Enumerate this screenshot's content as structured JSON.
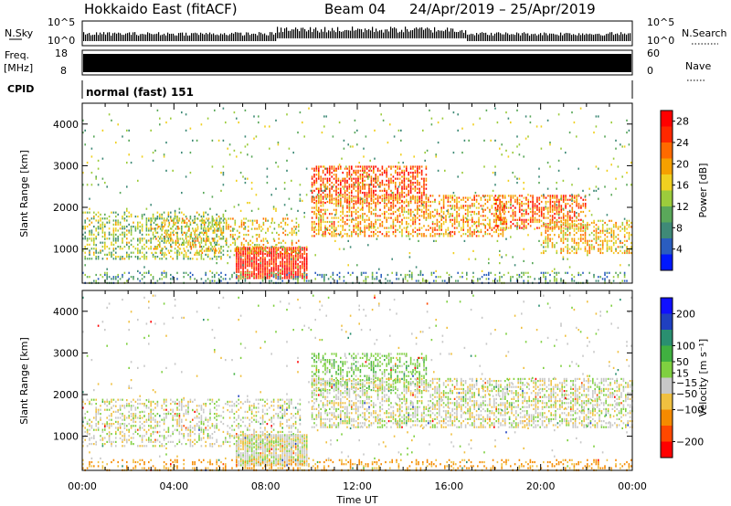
{
  "header": {
    "station": "Hokkaido East (fitACF)",
    "beam": "Beam 04",
    "dates": "24/Apr/2019 – 25/Apr/2019"
  },
  "strips": {
    "nsky_label": "N.Sky",
    "nsearch_label": "N.Search",
    "noise_top": "10^5",
    "noise_bottom": "10^0",
    "freq_label_1": "Freq.",
    "freq_label_2": "[MHz]",
    "freq_top": "18",
    "freq_bottom": "8",
    "nave_label": "Nave",
    "nave_top": "60",
    "nave_bottom": "0",
    "cpid_label": "CPID",
    "cpid_value": "normal (fast) 151"
  },
  "colors": {
    "frame": "#000000",
    "power_scale": [
      "#0018ff",
      "#2a5dbf",
      "#3f8a77",
      "#5aa85a",
      "#9ccc3c",
      "#f0d020",
      "#f5a000",
      "#ff6a00",
      "#ff2800",
      "#ff0000"
    ],
    "velocity_scale": [
      "#ff0000",
      "#ff4800",
      "#f58a00",
      "#f0c040",
      "#c8c8c8",
      "#7fd040",
      "#40b040",
      "#2a8f70",
      "#2040c0",
      "#1010ff"
    ]
  },
  "chart_data": [
    {
      "type": "heatmap",
      "name": "power-panel",
      "ylabel": "Slant Range [km]",
      "xlabel": "",
      "x_ticks": [
        "00:00",
        "04:00",
        "08:00",
        "12:00",
        "16:00",
        "20:00",
        "00:00"
      ],
      "y_ticks": [
        1000,
        2000,
        3000,
        4000
      ],
      "xlim": [
        0,
        24
      ],
      "ylim": [
        180,
        4500
      ],
      "colorbar": {
        "label": "Power [dB]",
        "ticks": [
          4,
          8,
          12,
          16,
          20,
          24,
          28
        ],
        "range": [
          0,
          30
        ]
      },
      "regions": [
        {
          "t": [
            6.7,
            9.8
          ],
          "r": [
            300,
            1050
          ],
          "v": 27,
          "d": 0.9
        },
        {
          "t": [
            0.0,
            6.2
          ],
          "r": [
            750,
            1900
          ],
          "v": 13,
          "d": 0.4
        },
        {
          "t": [
            3.0,
            9.5
          ],
          "r": [
            900,
            1750
          ],
          "v": 17,
          "d": 0.3
        },
        {
          "t": [
            10.0,
            15.0
          ],
          "r": [
            2100,
            3000
          ],
          "v": 24,
          "d": 0.6
        },
        {
          "t": [
            10.0,
            18.5
          ],
          "r": [
            1300,
            2300
          ],
          "v": 20,
          "d": 0.5
        },
        {
          "t": [
            18.0,
            22.0
          ],
          "r": [
            1500,
            2300
          ],
          "v": 23,
          "d": 0.55
        },
        {
          "t": [
            20.0,
            24.0
          ],
          "r": [
            900,
            1700
          ],
          "v": 18,
          "d": 0.45
        },
        {
          "t": [
            0.0,
            24.0
          ],
          "r": [
            180,
            450
          ],
          "v": 9,
          "d": 0.3
        },
        {
          "t": [
            0.0,
            24.0
          ],
          "r": [
            450,
            4400
          ],
          "v": 12,
          "d": 0.025
        }
      ]
    },
    {
      "type": "heatmap",
      "name": "velocity-panel",
      "ylabel": "Slant Range [km]",
      "xlabel": "Time UT",
      "x_ticks": [
        "00:00",
        "04:00",
        "08:00",
        "12:00",
        "16:00",
        "20:00",
        "00:00"
      ],
      "y_ticks": [
        1000,
        2000,
        3000,
        4000
      ],
      "xlim": [
        0,
        24
      ],
      "ylim": [
        180,
        4500
      ],
      "colorbar": {
        "label": "Velocity [m s⁻¹]",
        "ticks": [
          200,
          100,
          50,
          15,
          -15,
          -50,
          -100,
          -200
        ],
        "range": [
          -250,
          250
        ]
      },
      "regions": [
        {
          "t": [
            6.7,
            9.8
          ],
          "r": [
            300,
            1050
          ],
          "v": 0,
          "d": 0.9
        },
        {
          "t": [
            0.0,
            9.5
          ],
          "r": [
            750,
            1900
          ],
          "v": 0,
          "d": 0.35
        },
        {
          "t": [
            10.0,
            15.0
          ],
          "r": [
            2100,
            3000
          ],
          "v": 35,
          "d": 0.45
        },
        {
          "t": [
            10.0,
            24.0
          ],
          "r": [
            1200,
            2400
          ],
          "v": 0,
          "d": 0.5
        },
        {
          "t": [
            0.0,
            24.0
          ],
          "r": [
            180,
            450
          ],
          "v": -60,
          "d": 0.3
        },
        {
          "t": [
            0.0,
            24.0
          ],
          "r": [
            450,
            4400
          ],
          "v": 0,
          "d": 0.02
        }
      ]
    }
  ]
}
